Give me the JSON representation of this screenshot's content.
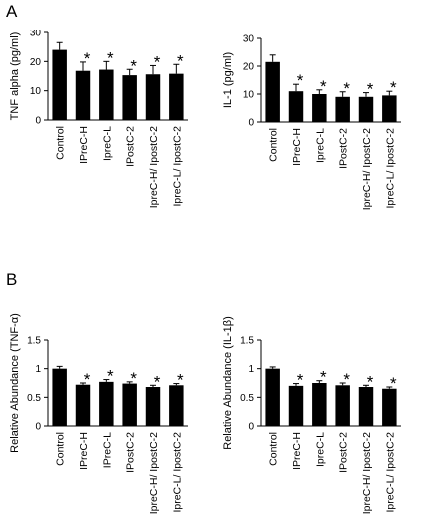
{
  "panels": {
    "a": "A",
    "b": "B"
  },
  "colors": {
    "bar": "#000000",
    "axis": "#000000"
  },
  "chart_data": [
    {
      "type": "bar",
      "ylabel": "TNF alpha (pg/ml)",
      "ylim": [
        0,
        30
      ],
      "yticks": [
        0,
        10,
        20,
        30
      ],
      "categories": [
        "Control",
        "IPreC-H",
        "IpreC-L",
        "IPostC-2",
        "IpreC-H/ IpostC-2",
        "IpreC-L/ IpostC-2"
      ],
      "values": [
        24.0,
        16.8,
        17.2,
        15.3,
        15.6,
        15.8
      ],
      "errors": [
        2.5,
        3.0,
        2.8,
        2.0,
        3.0,
        3.2
      ],
      "significance": [
        "",
        "*",
        "*",
        "*",
        "*",
        "*"
      ]
    },
    {
      "type": "bar",
      "ylabel": "IL-1 (pg/ml)",
      "ylim": [
        0,
        30
      ],
      "yticks": [
        0,
        10,
        20,
        30
      ],
      "categories": [
        "Control",
        "IPreC-H",
        "IpreC-L",
        "IPostC-2",
        "IpreC-H/ IpostC-2",
        "IpreC-L/ IpostC-2"
      ],
      "values": [
        21.5,
        11.0,
        10.0,
        9.0,
        9.0,
        9.5
      ],
      "errors": [
        2.5,
        2.5,
        1.5,
        1.8,
        1.5,
        1.5
      ],
      "significance": [
        "",
        "*",
        "*",
        "*",
        "*",
        "*"
      ]
    },
    {
      "type": "bar",
      "ylabel": "Relative Abundance (TNF-α)",
      "ylim": [
        0,
        1.5
      ],
      "yticks": [
        0,
        0.5,
        1,
        1.5
      ],
      "categories": [
        "Control",
        "IPreC-H",
        "IPreC-L",
        "IPostC-2",
        "IpreC-H/ IpostC-2",
        "IpreC-L/ IpostC-2"
      ],
      "values": [
        1.0,
        0.72,
        0.77,
        0.74,
        0.68,
        0.71
      ],
      "errors": [
        0.04,
        0.03,
        0.04,
        0.03,
        0.03,
        0.03
      ],
      "significance": [
        "",
        "*",
        "*",
        "*",
        "*",
        "*"
      ]
    },
    {
      "type": "bar",
      "ylabel": "Relative Abundance (IL-1β)",
      "ylim": [
        0,
        1.5
      ],
      "yticks": [
        0,
        0.5,
        1,
        1.5
      ],
      "categories": [
        "Control",
        "IPreC-H",
        "IpreC-L",
        "IPostC-2",
        "IpreC-H/ IpostC-2",
        "IpreC-L/ IpostC-2"
      ],
      "values": [
        1.0,
        0.7,
        0.75,
        0.71,
        0.68,
        0.65
      ],
      "errors": [
        0.03,
        0.04,
        0.04,
        0.04,
        0.03,
        0.03
      ],
      "significance": [
        "",
        "*",
        "*",
        "*",
        "*",
        "*"
      ]
    }
  ]
}
